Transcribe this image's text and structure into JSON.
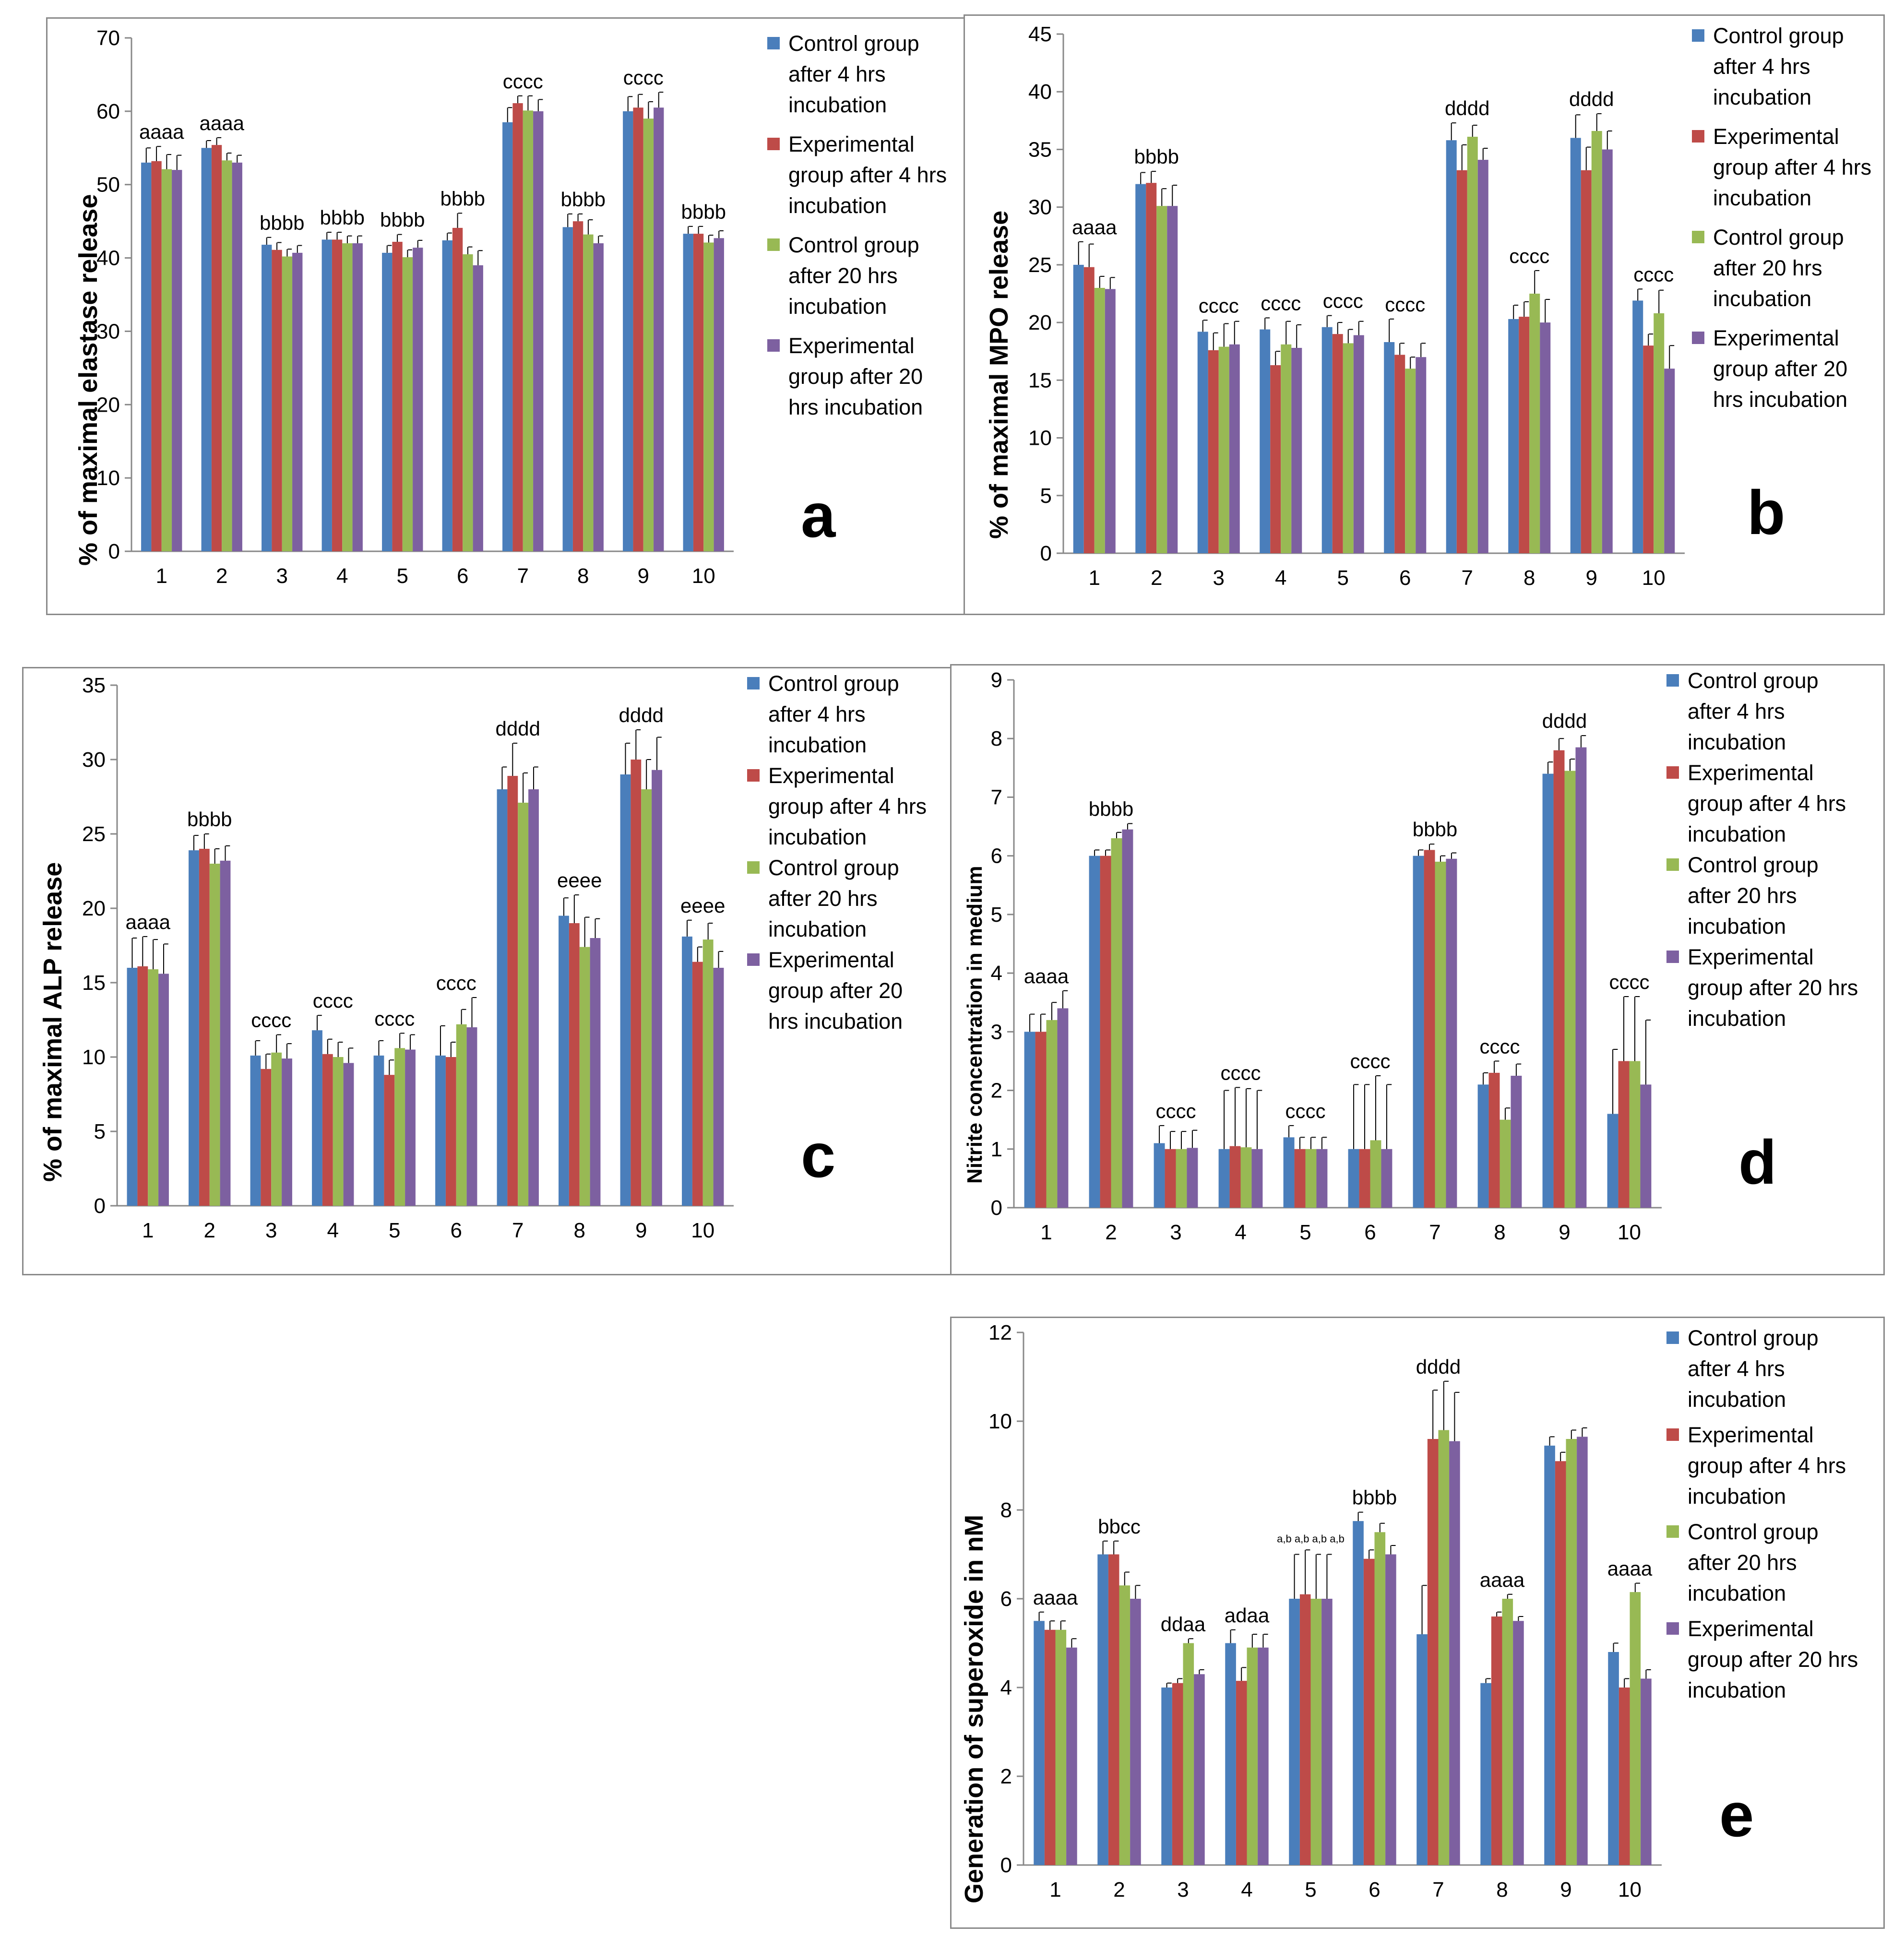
{
  "legend": [
    {
      "key": "c4",
      "color": "#4a7ebb"
    },
    {
      "key": "e4",
      "color": "#be4b48"
    },
    {
      "key": "c20",
      "color": "#98b954"
    },
    {
      "key": "e20",
      "color": "#7d60a0"
    }
  ],
  "chart_data": [
    {
      "id": "a",
      "type": "bar",
      "panel_letter": "a",
      "ylabel": "% of maximal elastase release",
      "ylim": [
        0,
        70
      ],
      "yticks": [
        0,
        10,
        20,
        30,
        40,
        50,
        60,
        70
      ],
      "categories": [
        "1",
        "2",
        "3",
        "4",
        "5",
        "6",
        "7",
        "8",
        "9",
        "10"
      ],
      "legend_labels": [
        "Control group\nafter 4 hrs\nincubation",
        "Experimental\ngroup after 4 hrs\nincubation",
        "Control group\nafter 20 hrs\nincubation",
        "Experimental\ngroup after 20\nhrs incubation"
      ],
      "series": [
        {
          "values": [
            53,
            55,
            41.8,
            42.5,
            40.7,
            42.4,
            58.5,
            44.2,
            60,
            43.3
          ],
          "errors": [
            2,
            1,
            1,
            1,
            1,
            1,
            2,
            1.8,
            2,
            1
          ]
        },
        {
          "values": [
            53.2,
            55.4,
            41.1,
            42.5,
            42.2,
            44.1,
            61.1,
            45,
            60.5,
            43.3
          ],
          "errors": [
            2,
            1,
            1,
            1,
            1,
            2,
            1,
            1,
            1.8,
            1
          ]
        },
        {
          "values": [
            52.1,
            53.3,
            40.2,
            42,
            40.1,
            40.5,
            60.1,
            43.2,
            59,
            42.1
          ],
          "errors": [
            2,
            1,
            1,
            1,
            1,
            1,
            2,
            2,
            2.3,
            1
          ]
        },
        {
          "values": [
            52,
            53,
            40.7,
            42,
            41.4,
            39,
            60,
            42,
            60.5,
            42.7
          ],
          "errors": [
            2,
            1,
            1,
            1,
            1,
            2,
            1.6,
            1,
            2.1,
            1
          ]
        }
      ],
      "annotations": [
        "aaaa",
        "aaaa",
        "bbbb",
        "bbbb",
        "bbbb",
        "bbbb",
        "cccc",
        "bbbb",
        "cccc",
        "bbbb"
      ]
    },
    {
      "id": "b",
      "type": "bar",
      "panel_letter": "b",
      "ylabel": "% of maximal MPO release",
      "ylim": [
        0,
        45
      ],
      "yticks": [
        0,
        5,
        10,
        15,
        20,
        25,
        30,
        35,
        40,
        45
      ],
      "categories": [
        "1",
        "2",
        "3",
        "4",
        "5",
        "6",
        "7",
        "8",
        "9",
        "10"
      ],
      "legend_labels": [
        "Control group\nafter 4 hrs\nincubation",
        "Experimental\ngroup after 4 hrs\nincubation",
        "Control group\nafter 20 hrs\nincubation",
        "Experimental\ngroup after 20\nhrs incubation"
      ],
      "series": [
        {
          "values": [
            25,
            32,
            19.2,
            19.4,
            19.6,
            18.3,
            35.8,
            20.3,
            36,
            21.9
          ],
          "errors": [
            2,
            1,
            1,
            1,
            1,
            2,
            1.5,
            1.2,
            2,
            1
          ]
        },
        {
          "values": [
            24.8,
            32.1,
            17.6,
            16.3,
            19,
            17.2,
            33.2,
            20.5,
            33.2,
            18
          ],
          "errors": [
            2,
            1,
            1.5,
            1.2,
            1,
            1,
            2.2,
            1.3,
            2,
            1
          ]
        },
        {
          "values": [
            23,
            30.1,
            17.9,
            18.1,
            18.2,
            16,
            36.1,
            22.5,
            36.6,
            20.8
          ],
          "errors": [
            1,
            1.5,
            2,
            2,
            1.2,
            1,
            1,
            2,
            1.5,
            2
          ]
        },
        {
          "values": [
            22.9,
            30.1,
            18.1,
            17.8,
            18.9,
            17,
            34.1,
            20,
            35,
            16
          ],
          "errors": [
            1,
            1.8,
            2,
            2,
            1.2,
            1.2,
            1,
            2,
            1.6,
            2
          ]
        }
      ],
      "annotations": [
        "aaaa",
        "bbbb",
        "cccc",
        "cccc",
        "cccc",
        "cccc",
        "dddd",
        "cccc",
        "dddd",
        "cccc"
      ]
    },
    {
      "id": "c",
      "type": "bar",
      "panel_letter": "c",
      "ylabel": "% of maximal ALP release",
      "ylim": [
        0,
        35
      ],
      "yticks": [
        0,
        5,
        10,
        15,
        20,
        25,
        30,
        35
      ],
      "categories": [
        "1",
        "2",
        "3",
        "4",
        "5",
        "6",
        "7",
        "8",
        "9",
        "10"
      ],
      "legend_labels": [
        "Control group\nafter 4 hrs\nincubation",
        "Experimental\ngroup after 4 hrs\nincubation",
        "Control group\nafter 20 hrs\nincubation",
        "Experimental\ngroup after 20\nhrs incubation"
      ],
      "series": [
        {
          "values": [
            16,
            23.9,
            10.1,
            11.8,
            10.1,
            10.1,
            28,
            19.5,
            29,
            18.1
          ],
          "errors": [
            2,
            1,
            1,
            1,
            1,
            2,
            1.5,
            1.2,
            2.1,
            1.1
          ]
        },
        {
          "values": [
            16.1,
            24,
            9.2,
            10.2,
            8.8,
            10,
            28.9,
            19,
            30,
            16.4
          ],
          "errors": [
            2,
            1,
            1,
            1,
            1,
            1,
            2.2,
            1.9,
            2,
            1
          ]
        },
        {
          "values": [
            15.9,
            23,
            10.3,
            10,
            10.6,
            12.2,
            27.1,
            17.4,
            28,
            17.9
          ],
          "errors": [
            2,
            1,
            1.2,
            1,
            1,
            1,
            2,
            2,
            2,
            1.1
          ]
        },
        {
          "values": [
            15.6,
            23.2,
            9.9,
            9.6,
            10.5,
            12,
            28,
            18,
            29.3,
            16
          ],
          "errors": [
            2,
            1,
            1,
            1,
            1,
            2,
            1.5,
            1.3,
            2.2,
            1.1
          ]
        }
      ],
      "annotations": [
        "aaaa",
        "bbbb",
        "cccc",
        "cccc",
        "cccc",
        "cccc",
        "dddd",
        "eeee",
        "dddd",
        "eeee"
      ]
    },
    {
      "id": "d",
      "type": "bar",
      "panel_letter": "d",
      "ylabel": "Nitrite concentration in medium",
      "ylim": [
        0,
        9
      ],
      "yticks": [
        0,
        1,
        2,
        3,
        4,
        5,
        6,
        7,
        8,
        9
      ],
      "categories": [
        "1",
        "2",
        "3",
        "4",
        "5",
        "6",
        "7",
        "8",
        "9",
        "10"
      ],
      "legend_labels": [
        "Control group\nafter 4 hrs\nincubation",
        "Experimental\ngroup after 4 hrs\nincubation",
        "Control group\nafter 20 hrs\nincubation",
        "Experimental\ngroup after 20 hrs\nincubation"
      ],
      "series": [
        {
          "values": [
            3,
            6,
            1.1,
            1,
            1.2,
            1,
            6,
            2.1,
            7.4,
            1.6
          ],
          "errors": [
            0.3,
            0.1,
            0.3,
            1,
            0.2,
            1.1,
            0.1,
            0.2,
            0.2,
            1.1
          ]
        },
        {
          "values": [
            3,
            6,
            1,
            1.05,
            1,
            1,
            6.1,
            2.3,
            7.8,
            2.5
          ],
          "errors": [
            0.3,
            0.1,
            0.3,
            1,
            0.2,
            1.1,
            0.1,
            0.2,
            0.2,
            1.1
          ]
        },
        {
          "values": [
            3.2,
            6.3,
            1,
            1.03,
            1,
            1.15,
            5.9,
            1.5,
            7.45,
            2.5
          ],
          "errors": [
            0.3,
            0.1,
            0.3,
            1,
            0.2,
            1.1,
            0.1,
            0.2,
            0.2,
            1.1
          ]
        },
        {
          "values": [
            3.4,
            6.45,
            1.02,
            1,
            1,
            1,
            5.95,
            2.25,
            7.85,
            2.1
          ],
          "errors": [
            0.3,
            0.1,
            0.3,
            1,
            0.2,
            1.1,
            0.1,
            0.2,
            0.2,
            1.1
          ]
        }
      ],
      "annotations": [
        "aaaa",
        "bbbb",
        "cccc",
        "cccc",
        "cccc",
        "cccc",
        "bbbb",
        "cccc",
        "dddd",
        "cccc"
      ]
    },
    {
      "id": "e",
      "type": "bar",
      "panel_letter": "e",
      "ylabel": "Generation of superoxide in nM",
      "ylim": [
        0,
        12
      ],
      "yticks": [
        0,
        2,
        4,
        6,
        8,
        10,
        12
      ],
      "categories": [
        "1",
        "2",
        "3",
        "4",
        "5",
        "6",
        "7",
        "8",
        "9",
        "10"
      ],
      "legend_labels": [
        "Control group\nafter 4 hrs\nincubation",
        "Experimental\ngroup after 4 hrs\nincubation",
        "Control group\nafter 20 hrs\nincubation",
        "Experimental\ngroup after 20 hrs\nincubation"
      ],
      "series": [
        {
          "values": [
            5.5,
            7,
            4,
            5,
            6,
            7.75,
            5.2,
            4.1,
            9.45,
            4.8
          ],
          "errors": [
            0.2,
            0.3,
            0.1,
            0.3,
            1,
            0.2,
            1.1,
            0.1,
            0.2,
            0.2
          ]
        },
        {
          "values": [
            5.3,
            7,
            4.1,
            4.15,
            6.1,
            6.9,
            9.6,
            5.6,
            9.1,
            4
          ],
          "errors": [
            0.2,
            0.3,
            0.1,
            0.3,
            1,
            0.2,
            1.1,
            0.1,
            0.2,
            0.2
          ]
        },
        {
          "values": [
            5.3,
            6.3,
            5,
            4.9,
            6,
            7.5,
            9.8,
            6,
            9.6,
            6.15
          ],
          "errors": [
            0.2,
            0.3,
            0.1,
            0.3,
            1,
            0.2,
            1.1,
            0.1,
            0.2,
            0.2
          ]
        },
        {
          "values": [
            4.9,
            6,
            4.3,
            4.9,
            6,
            7,
            9.55,
            5.5,
            9.65,
            4.2
          ],
          "errors": [
            0.2,
            0.3,
            0.1,
            0.3,
            1,
            0.2,
            1.1,
            0.1,
            0.2,
            0.2
          ]
        }
      ],
      "annotations": [
        "aaaa",
        "bbcc",
        "ddaa",
        "adaa",
        "a,b a,b a,b a,b",
        "bbbb",
        "dddd",
        "aaaa",
        "",
        "aaaa"
      ]
    }
  ]
}
